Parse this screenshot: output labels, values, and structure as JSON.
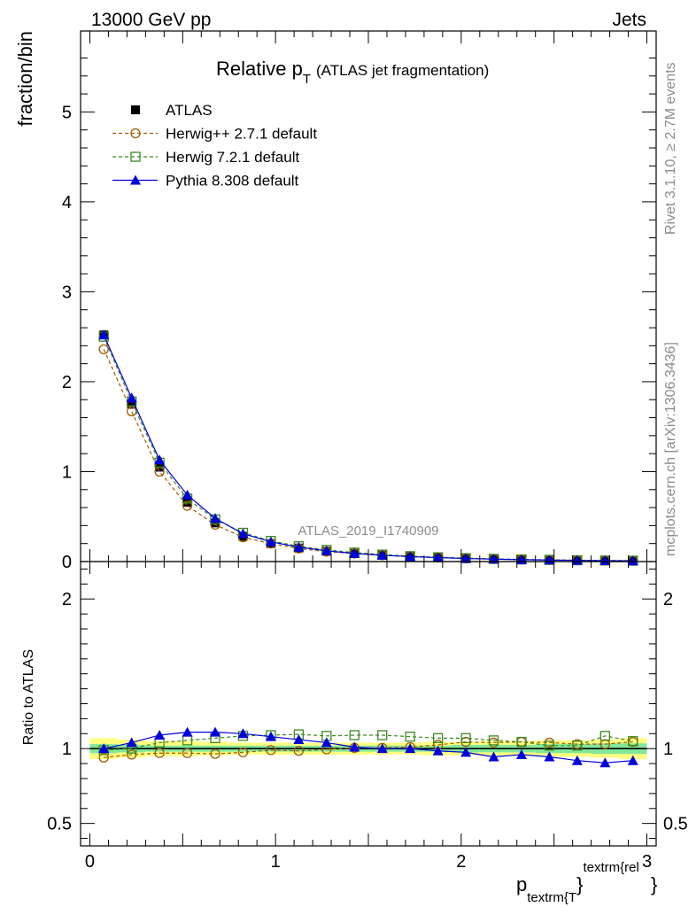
{
  "header": {
    "left": "13000 GeV pp",
    "right": "Jets"
  },
  "title": {
    "main": "Relative p",
    "sub": "T",
    "paren": "(ATLAS jet fragmentation)"
  },
  "side_text": {
    "rivet": "Rivet 3.1.10, ≥ 2.7M events",
    "mcplots": "mcplots.cern.ch [arXiv:1306.3436]"
  },
  "watermark": "ATLAS_2019_I1740909",
  "colors": {
    "atlas": "#000000",
    "herwigpp": "#a35a00",
    "herwig7": "#3a8a1e",
    "pythia": "#0000dd",
    "band_inner": "#7fe89a",
    "band_outer": "#ffff80"
  },
  "chart_data": [
    {
      "type": "scatter",
      "ylabel": "fraction/bin",
      "xlim": [
        -0.05,
        3.05
      ],
      "ylim": [
        0,
        5.9
      ],
      "y_ticks": [
        "0",
        "1",
        "2",
        "3",
        "4",
        "5"
      ],
      "x": [
        0.075,
        0.225,
        0.375,
        0.525,
        0.675,
        0.825,
        0.975,
        1.125,
        1.275,
        1.425,
        1.575,
        1.725,
        1.875,
        2.025,
        2.175,
        2.325,
        2.475,
        2.625,
        2.775,
        2.925
      ],
      "series": [
        {
          "name": "ATLAS",
          "marker": "square-filled",
          "values": [
            2.52,
            1.75,
            1.05,
            0.66,
            0.43,
            0.28,
            0.2,
            0.15,
            0.115,
            0.09,
            0.07,
            0.055,
            0.045,
            0.035,
            0.028,
            0.022,
            0.018,
            0.014,
            0.011,
            0.009
          ]
        },
        {
          "name": "Herwig++ 2.7.1 default",
          "marker": "circle-open",
          "line": "dashed",
          "values": [
            2.36,
            1.67,
            1.0,
            0.62,
            0.41,
            0.27,
            0.2,
            0.145,
            0.11,
            0.09,
            0.07,
            0.055,
            0.045,
            0.035,
            0.028,
            0.022,
            0.018,
            0.014,
            0.011,
            0.009
          ]
        },
        {
          "name": "Herwig 7.2.1 default",
          "marker": "square-open",
          "line": "dashed",
          "values": [
            2.5,
            1.78,
            1.1,
            0.7,
            0.47,
            0.32,
            0.23,
            0.17,
            0.13,
            0.1,
            0.078,
            0.06,
            0.048,
            0.038,
            0.03,
            0.024,
            0.019,
            0.015,
            0.012,
            0.01
          ]
        },
        {
          "name": "Pythia 8.308 default",
          "marker": "triangle-filled",
          "line": "solid",
          "values": [
            2.52,
            1.82,
            1.13,
            0.74,
            0.48,
            0.31,
            0.22,
            0.16,
            0.12,
            0.09,
            0.07,
            0.055,
            0.044,
            0.034,
            0.027,
            0.021,
            0.017,
            0.013,
            0.01,
            0.008
          ]
        }
      ],
      "legend": "top-left"
    },
    {
      "type": "scatter",
      "ylabel": "Ratio to ATLAS",
      "xlabel": "p",
      "xlabel_sub": "textrm{T",
      "xlabel_sup": "textrm{rel",
      "xlabel_close": "}",
      "xlim": [
        -0.05,
        3.05
      ],
      "ylim": [
        0.35,
        2.25
      ],
      "x_ticks": [
        "0",
        "1",
        "2",
        "3"
      ],
      "y_ticks": [
        "0.5",
        "1",
        "2"
      ],
      "x": [
        0.075,
        0.225,
        0.375,
        0.525,
        0.675,
        0.825,
        0.975,
        1.125,
        1.275,
        1.425,
        1.575,
        1.725,
        1.875,
        2.025,
        2.175,
        2.325,
        2.475,
        2.625,
        2.775,
        2.925
      ],
      "band_inner": [
        0.03,
        0.025,
        0.02,
        0.02,
        0.02,
        0.02,
        0.02,
        0.02,
        0.02,
        0.02,
        0.02,
        0.02,
        0.02,
        0.025,
        0.025,
        0.025,
        0.03,
        0.03,
        0.035,
        0.035
      ],
      "band_outer": [
        0.07,
        0.06,
        0.05,
        0.05,
        0.045,
        0.04,
        0.04,
        0.04,
        0.04,
        0.04,
        0.04,
        0.04,
        0.045,
        0.045,
        0.05,
        0.05,
        0.055,
        0.055,
        0.06,
        0.07
      ],
      "series": [
        {
          "name": "Herwig++ 2.7.1 default",
          "values": [
            0.94,
            0.96,
            0.97,
            0.97,
            0.965,
            0.975,
            0.99,
            0.985,
            0.995,
            1.005,
            1.005,
            1.01,
            1.025,
            1.045,
            1.04,
            1.045,
            1.04,
            1.03,
            1.03,
            1.045
          ]
        },
        {
          "name": "Herwig 7.2.1 default",
          "values": [
            0.99,
            1.0,
            1.04,
            1.055,
            1.07,
            1.085,
            1.09,
            1.095,
            1.085,
            1.09,
            1.09,
            1.08,
            1.07,
            1.07,
            1.055,
            1.045,
            1.02,
            1.02,
            1.085,
            1.05
          ]
        },
        {
          "name": "Pythia 8.308 default",
          "values": [
            1.0,
            1.04,
            1.09,
            1.11,
            1.11,
            1.1,
            1.08,
            1.06,
            1.04,
            1.01,
            1.0,
            1.0,
            0.985,
            0.975,
            0.945,
            0.96,
            0.945,
            0.92,
            0.905,
            0.92
          ]
        }
      ]
    }
  ]
}
